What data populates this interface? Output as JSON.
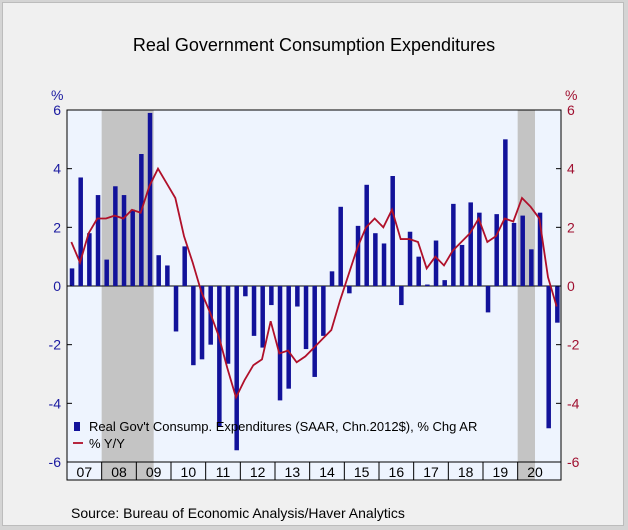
{
  "title": "Real Government Consumption Expenditures",
  "source": "Source:  Bureau of Economic Analysis/Haver Analytics",
  "colors": {
    "bar": "#12129a",
    "line": "#b0102a",
    "plot_bg": "#eef4fe",
    "recession": "#c4c4c4",
    "frame": "#f0f0f0"
  },
  "chart_data": {
    "type": "bar",
    "left_axis": {
      "unit": "%",
      "ylim": [
        -6,
        6
      ],
      "ticks": [
        "6",
        "4",
        "2",
        "0",
        "-2",
        "-4",
        "-6"
      ]
    },
    "right_axis": {
      "unit": "%",
      "ylim": [
        -6,
        6
      ],
      "ticks": [
        "6",
        "4",
        "2",
        "0",
        "-2",
        "-4",
        "-6"
      ]
    },
    "x_labels": [
      "07",
      "08",
      "09",
      "10",
      "11",
      "12",
      "13",
      "14",
      "15",
      "16",
      "17",
      "18",
      "19",
      "20"
    ],
    "x_start": "2007Q1",
    "recessions": [
      {
        "start": "2008Q1",
        "end": "2009Q2"
      },
      {
        "start": "2020Q1",
        "end": "2020Q2"
      }
    ],
    "grid": false,
    "legend": "bottom-left",
    "series": [
      {
        "name": "Real Gov't Consump. Expenditures (SAAR, Chn.2012$), % Chg AR",
        "kind": "bar",
        "values": [
          0.6,
          3.7,
          1.8,
          3.1,
          0.9,
          3.4,
          3.1,
          2.6,
          4.5,
          5.9,
          1.05,
          0.7,
          -1.55,
          1.35,
          -2.7,
          -2.5,
          -2.0,
          -4.8,
          -2.65,
          -5.6,
          -0.35,
          -1.7,
          -2.1,
          -0.65,
          -3.9,
          -3.5,
          -0.7,
          -2.15,
          -3.1,
          -1.7,
          0.5,
          2.7,
          -0.25,
          2.05,
          3.45,
          1.8,
          1.45,
          3.75,
          -0.65,
          1.85,
          1.0,
          0.05,
          1.55,
          0.2,
          2.8,
          1.4,
          2.85,
          2.5,
          -0.9,
          2.45,
          5.0,
          2.15,
          2.4,
          1.25,
          2.5,
          -4.85,
          -1.25
        ]
      },
      {
        "name": "% Y/Y",
        "kind": "line",
        "values": [
          1.5,
          0.8,
          1.8,
          2.3,
          2.3,
          2.4,
          2.3,
          2.6,
          2.5,
          3.4,
          4.0,
          3.5,
          3.0,
          1.7,
          0.8,
          -0.2,
          -0.9,
          -1.7,
          -2.8,
          -3.8,
          -3.2,
          -2.7,
          -2.5,
          -1.2,
          -2.3,
          -2.2,
          -2.6,
          -2.4,
          -2.1,
          -1.8,
          -1.5,
          -0.5,
          0.4,
          1.3,
          2.0,
          2.3,
          2.0,
          2.6,
          1.6,
          1.6,
          1.5,
          0.6,
          1.0,
          0.7,
          1.2,
          1.5,
          1.8,
          2.3,
          1.5,
          1.7,
          2.3,
          2.2,
          3.0,
          2.7,
          2.3,
          0.3,
          -0.7
        ]
      }
    ]
  }
}
